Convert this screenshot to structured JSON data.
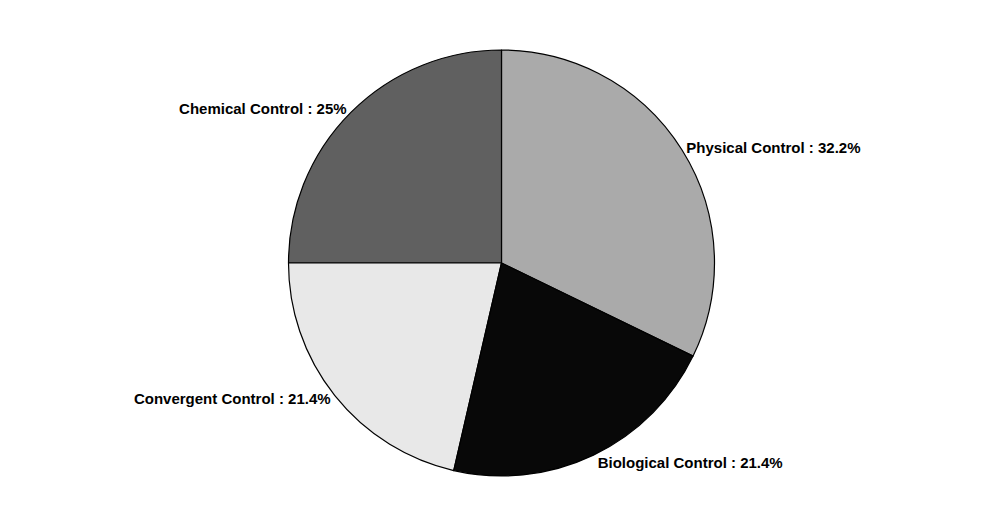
{
  "chart_data": {
    "type": "pie",
    "categories": [
      "Physical Control : 32.2%",
      "Chemical Control : 25%",
      "Convergent Control : 21.4%",
      "Biological Control : 21.4%"
    ],
    "values": [
      32.2,
      25.0,
      21.4,
      21.4
    ],
    "colors": [
      "#aaaaaa",
      "#606060",
      "#e8e8e8",
      "#080808"
    ],
    "data_labels": true
  }
}
